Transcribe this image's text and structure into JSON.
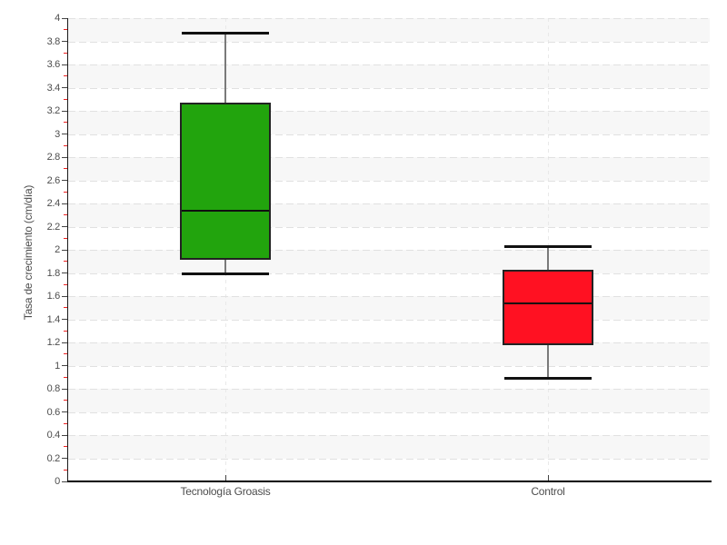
{
  "chart_data": {
    "type": "boxplot",
    "title": "",
    "xlabel": "",
    "ylabel": "Tasa de crecimiento (cm/día)",
    "ylim": [
      0,
      4
    ],
    "ytick_step": 0.2,
    "ytick_labels": [
      "0",
      "0.2",
      "0.4",
      "0.6",
      "0.8",
      "1",
      "1.2",
      "1.4",
      "1.6",
      "1.8",
      "2",
      "2.2",
      "2.4",
      "2.6",
      "2.8",
      "3",
      "3.2",
      "3.4",
      "3.6",
      "3.8",
      "4"
    ],
    "minor_tick_step": 0.1,
    "grid": "horizontal dashed lines every 0.2 with alternating gray/white bands; vertical dashed line at each category center",
    "legend": "none",
    "categories": [
      "Tecnología Groasis",
      "Control"
    ],
    "series": [
      {
        "name": "Tecnología Groasis",
        "min": 1.79,
        "q1": 1.91,
        "median": 2.34,
        "q3": 3.27,
        "max": 3.87,
        "fill": "#22a40d"
      },
      {
        "name": "Control",
        "min": 0.89,
        "q1": 1.18,
        "median": 1.54,
        "q3": 1.83,
        "max": 2.03,
        "fill": "#ff1122"
      }
    ]
  },
  "colors": {
    "band_gray": "#f7f7f7",
    "band_white": "#ffffff",
    "gridline": "#e1e1e1",
    "axis": "#000000",
    "major_tick": "#444444",
    "minor_tick": "#ee2222",
    "text": "#4d4d4d",
    "box_border": "#222222",
    "median": "#101010",
    "whisker_stem": "#7a7a7a",
    "whisker_cap": "#111111",
    "green_box": "#22a40d",
    "red_box": "#ff1122"
  }
}
